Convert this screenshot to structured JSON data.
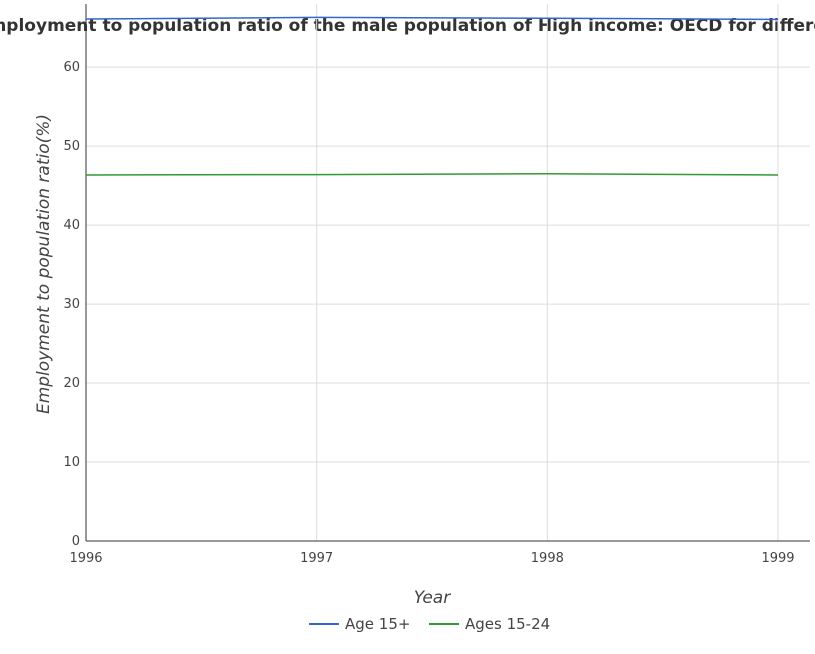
{
  "chart_data": {
    "type": "line",
    "title": "Employment to population ratio of the male population of High income: OECD for differen",
    "xlabel": "Year",
    "ylabel": "Employment to population ratio(%)",
    "x": [
      "1996",
      "1997",
      "1998",
      "1999"
    ],
    "ylim": [
      0,
      68
    ],
    "yticks": [
      0,
      10,
      20,
      30,
      40,
      50,
      60
    ],
    "grid": true,
    "legend_position": "bottom-center",
    "series": [
      {
        "name": "Age 15+",
        "color": "#3366cc",
        "values": [
          66.1,
          66.3,
          66.2,
          66.05
        ]
      },
      {
        "name": "Ages 15-24",
        "color": "#339933",
        "values": [
          46.35,
          46.4,
          46.5,
          46.35
        ]
      }
    ]
  }
}
